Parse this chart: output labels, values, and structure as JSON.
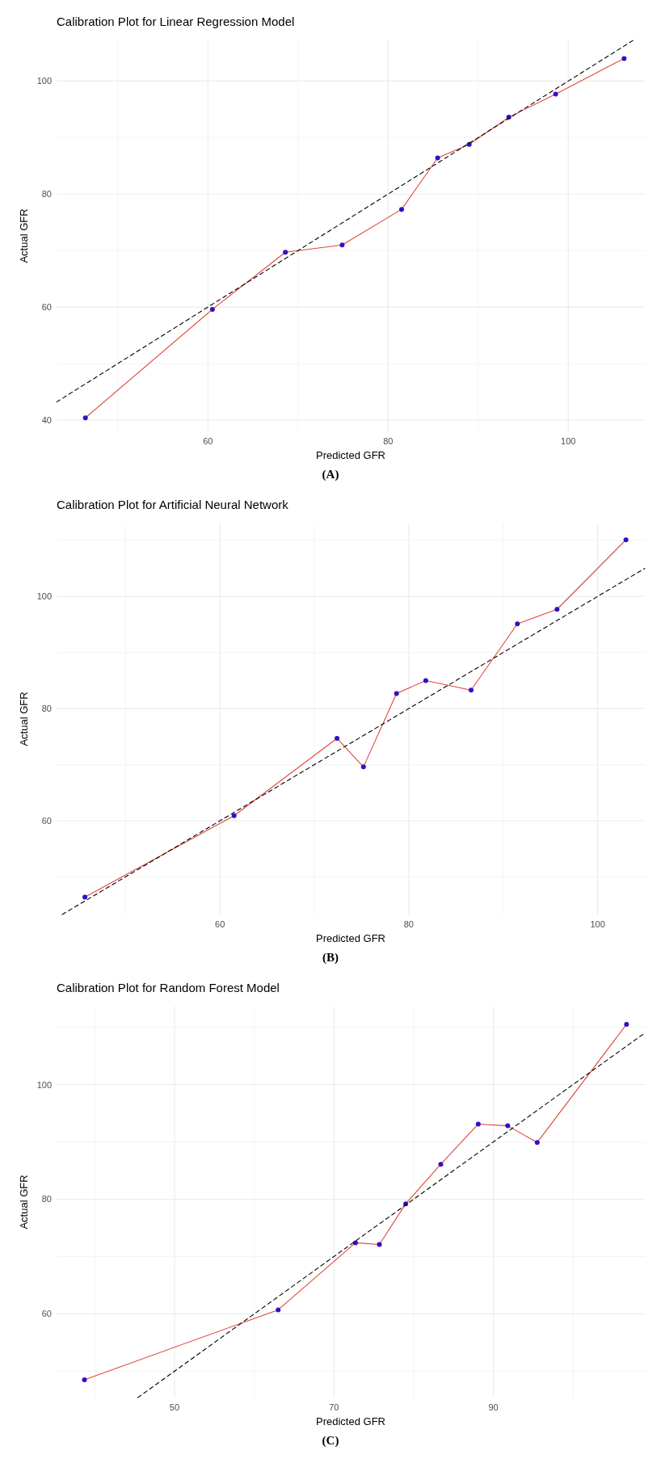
{
  "chart_data": [
    {
      "type": "line",
      "title": "Calibration Plot for Linear Regression Model",
      "xlabel": "Predicted GFR",
      "ylabel": "Actual GFR",
      "annotations": [
        "(A)"
      ],
      "grid": true,
      "xlim": [
        43.2,
        108.5
      ],
      "xticks": [
        {
          "value": 50,
          "label": null
        },
        60,
        {
          "value": 70,
          "label": null
        },
        80,
        {
          "value": 90,
          "label": null
        },
        100
      ],
      "ylim": [
        38,
        107.2
      ],
      "yticks": [
        40,
        {
          "value": 50,
          "label": null
        },
        60,
        {
          "value": 70,
          "label": null
        },
        80,
        {
          "value": 90,
          "label": null
        },
        100
      ],
      "series": [
        {
          "type": "line",
          "color": "#e0463c",
          "marker": "none",
          "line_style": "solid",
          "x": [
            46.4,
            60.5,
            68.6,
            74.9,
            81.5,
            85.5,
            89.0,
            93.4,
            98.6,
            106.2
          ],
          "values": [
            40.4,
            59.6,
            69.7,
            71.0,
            77.3,
            86.4,
            88.8,
            93.6,
            97.7,
            104.0
          ]
        },
        {
          "type": "scatter",
          "color": "#3010c8",
          "marker": "circle",
          "x": [
            46.4,
            60.5,
            68.6,
            74.9,
            81.5,
            85.5,
            89.0,
            93.4,
            98.6,
            106.2
          ],
          "values": [
            40.4,
            59.6,
            69.7,
            71.0,
            77.3,
            86.4,
            88.8,
            93.6,
            97.7,
            104.0
          ]
        },
        {
          "type": "line",
          "color": "#000000",
          "marker": "none",
          "line_style": "dashed",
          "x": [
            43.2,
            107.2
          ],
          "values": [
            43.2,
            107.2
          ]
        }
      ]
    },
    {
      "type": "line",
      "title": "Calibration Plot for Artificial Neural Network",
      "xlabel": "Predicted GFR",
      "ylabel": "Actual GFR",
      "annotations": [
        "(B)"
      ],
      "grid": true,
      "xlim": [
        42.7,
        105
      ],
      "xticks": [
        {
          "value": 50,
          "label": null
        },
        60,
        {
          "value": 70,
          "label": null
        },
        80,
        {
          "value": 90,
          "label": null
        },
        100
      ],
      "ylim": [
        43.3,
        113
      ],
      "yticks": [
        {
          "value": 50,
          "label": null
        },
        60,
        {
          "value": 70,
          "label": null
        },
        80,
        {
          "value": 90,
          "label": null
        },
        100,
        {
          "value": 110,
          "label": null
        }
      ],
      "series": [
        {
          "type": "line",
          "color": "#e0463c",
          "marker": "none",
          "line_style": "solid",
          "x": [
            45.7,
            61.5,
            72.4,
            75.2,
            78.7,
            81.8,
            86.6,
            91.5,
            95.7,
            103.0
          ],
          "values": [
            46.4,
            60.9,
            74.7,
            69.6,
            82.7,
            85.0,
            83.3,
            95.1,
            97.7,
            110.1
          ]
        },
        {
          "type": "scatter",
          "color": "#3010c8",
          "marker": "circle",
          "x": [
            45.7,
            61.5,
            72.4,
            75.2,
            78.7,
            81.8,
            86.6,
            91.5,
            95.7,
            103.0
          ],
          "values": [
            46.4,
            60.9,
            74.7,
            69.6,
            82.7,
            85.0,
            83.3,
            95.1,
            97.7,
            110.1
          ]
        },
        {
          "type": "line",
          "color": "#000000",
          "marker": "none",
          "line_style": "dashed",
          "x": [
            43.3,
            105
          ],
          "values": [
            43.3,
            105
          ]
        }
      ]
    },
    {
      "type": "line",
      "title": "Calibration Plot for Random Forest Model",
      "xlabel": "Predicted GFR",
      "ylabel": "Actual GFR",
      "annotations": [
        "(C)"
      ],
      "grid": true,
      "xlim": [
        35.2,
        109
      ],
      "xticks": [
        {
          "value": 40,
          "label": null
        },
        50,
        {
          "value": 60,
          "label": null
        },
        70,
        {
          "value": 80,
          "label": null
        },
        90,
        {
          "value": 100,
          "label": null
        }
      ],
      "ylim": [
        45.4,
        113.6
      ],
      "yticks": [
        {
          "value": 50,
          "label": null
        },
        60,
        {
          "value": 70,
          "label": null
        },
        80,
        {
          "value": 90,
          "label": null
        },
        100,
        {
          "value": 110,
          "label": null
        }
      ],
      "series": [
        {
          "type": "line",
          "color": "#e0463c",
          "marker": "none",
          "line_style": "solid",
          "x": [
            38.7,
            63.0,
            72.7,
            75.7,
            79.0,
            83.4,
            88.1,
            91.8,
            95.5,
            106.7
          ],
          "values": [
            48.5,
            60.7,
            72.4,
            72.1,
            79.2,
            86.1,
            93.1,
            92.8,
            89.9,
            110.5
          ]
        },
        {
          "type": "scatter",
          "color": "#3010c8",
          "marker": "circle",
          "x": [
            38.7,
            63.0,
            72.7,
            75.7,
            79.0,
            83.4,
            88.1,
            91.8,
            95.5,
            106.7
          ],
          "values": [
            48.5,
            60.7,
            72.4,
            72.1,
            79.2,
            86.1,
            93.1,
            92.8,
            89.9,
            110.5
          ]
        },
        {
          "type": "line",
          "color": "#000000",
          "marker": "none",
          "line_style": "dashed",
          "x": [
            45.4,
            109
          ],
          "values": [
            45.4,
            109
          ]
        }
      ]
    }
  ]
}
